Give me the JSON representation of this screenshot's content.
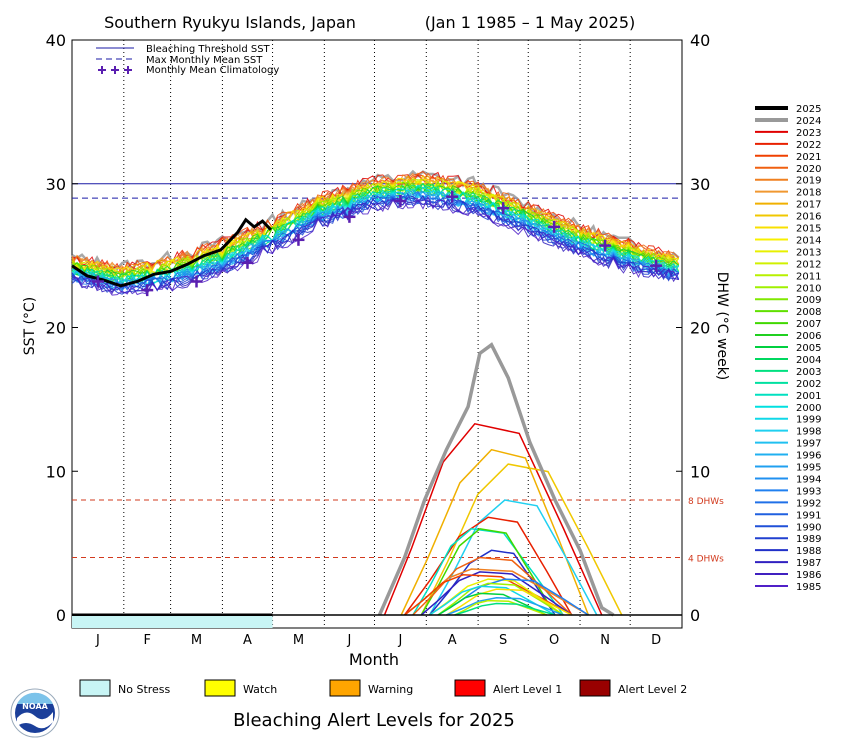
{
  "chart_data": {
    "type": "line",
    "title": "Southern Ryukyu Islands, Japan",
    "date_range": "(Jan 1 1985 – 1 May 2025)",
    "xlabel": "Month",
    "ylabel_left": "SST (°C)",
    "ylabel_right": "DHW (°C week)",
    "x_ticks": [
      "J",
      "F",
      "M",
      "A",
      "M",
      "J",
      "J",
      "A",
      "S",
      "O",
      "N",
      "D"
    ],
    "y_ticks_left": [
      "0",
      "10",
      "20",
      "30",
      "40"
    ],
    "y_ticks_right": [
      "0",
      "10",
      "20",
      "30",
      "40"
    ],
    "sst_ylim": [
      0,
      40
    ],
    "dhw_ylim": [
      0,
      40
    ],
    "grid": "vertical dotted month lines",
    "legend_top": [
      {
        "label": "Bleaching Threshold SST",
        "style": "solid",
        "color": "#1a1aa6"
      },
      {
        "label": "Max Monthly Mean SST",
        "style": "dashed",
        "color": "#1a1aa6"
      },
      {
        "label": "Monthly Mean Climatology",
        "style": "cross",
        "color": "#5a1fb0"
      }
    ],
    "bleaching_threshold": 30.0,
    "max_monthly_mean": 29.0,
    "dhw_reference_lines": [
      {
        "value": 8,
        "label": "8 DHWs"
      },
      {
        "value": 4,
        "label": "4 DHWs"
      }
    ],
    "climatology": {
      "months": [
        1,
        2,
        3,
        4,
        5,
        6,
        7,
        8,
        9,
        10,
        11,
        12
      ],
      "values": [
        23.2,
        22.6,
        23.2,
        24.5,
        26.1,
        27.7,
        28.8,
        29.1,
        28.3,
        27.0,
        25.7,
        24.3
      ]
    },
    "year_series": [
      {
        "name": "2025",
        "color": "#000000"
      },
      {
        "name": "2024",
        "color": "#999999"
      },
      {
        "name": "2023",
        "color": "#e00000"
      },
      {
        "name": "2022",
        "color": "#e82000"
      },
      {
        "name": "2021",
        "color": "#f04000"
      },
      {
        "name": "2020",
        "color": "#f06010"
      },
      {
        "name": "2019",
        "color": "#f08020"
      },
      {
        "name": "2018",
        "color": "#f09830"
      },
      {
        "name": "2017",
        "color": "#f0b000"
      },
      {
        "name": "2016",
        "color": "#f0c800"
      },
      {
        "name": "2015",
        "color": "#f8e000"
      },
      {
        "name": "2014",
        "color": "#f8f000"
      },
      {
        "name": "2013",
        "color": "#e8f000"
      },
      {
        "name": "2012",
        "color": "#d0f000"
      },
      {
        "name": "2011",
        "color": "#b8f000"
      },
      {
        "name": "2010",
        "color": "#a0f000"
      },
      {
        "name": "2009",
        "color": "#80e800"
      },
      {
        "name": "2008",
        "color": "#60e000"
      },
      {
        "name": "2007",
        "color": "#40d800"
      },
      {
        "name": "2006",
        "color": "#20d020"
      },
      {
        "name": "2005",
        "color": "#00d040"
      },
      {
        "name": "2004",
        "color": "#00d860"
      },
      {
        "name": "2003",
        "color": "#00e080"
      },
      {
        "name": "2002",
        "color": "#00e0a0"
      },
      {
        "name": "2001",
        "color": "#00e0c0"
      },
      {
        "name": "2000",
        "color": "#00e0e0"
      },
      {
        "name": "1999",
        "color": "#10d8e8"
      },
      {
        "name": "1998",
        "color": "#20d0f0"
      },
      {
        "name": "1997",
        "color": "#20c0f0"
      },
      {
        "name": "1996",
        "color": "#20b0f0"
      },
      {
        "name": "1995",
        "color": "#20a0f0"
      },
      {
        "name": "1994",
        "color": "#2090f0"
      },
      {
        "name": "1993",
        "color": "#2080f0"
      },
      {
        "name": "1992",
        "color": "#2070e8"
      },
      {
        "name": "1991",
        "color": "#2060e0"
      },
      {
        "name": "1990",
        "color": "#2050d8"
      },
      {
        "name": "1989",
        "color": "#2040d0"
      },
      {
        "name": "1988",
        "color": "#2030c8"
      },
      {
        "name": "1987",
        "color": "#3020c0"
      },
      {
        "name": "1986",
        "color": "#4020c0"
      },
      {
        "name": "1985",
        "color": "#5020c8"
      }
    ],
    "sst_2025": {
      "days": [
        1,
        10,
        20,
        30,
        40,
        50,
        60,
        70,
        80,
        90,
        95,
        100,
        105,
        110,
        115,
        120
      ],
      "values": [
        24.3,
        23.6,
        23.3,
        22.9,
        23.2,
        23.7,
        23.9,
        24.4,
        25.0,
        25.4,
        26.0,
        26.6,
        27.5,
        27.0,
        27.4,
        26.8
      ]
    },
    "sst_envelope": {
      "days": [
        1,
        30,
        60,
        90,
        120,
        150,
        180,
        210,
        240,
        270,
        300,
        330,
        365
      ],
      "high": [
        25.2,
        24.6,
        25.3,
        26.4,
        27.8,
        29.5,
        30.6,
        31.0,
        30.6,
        29.1,
        27.6,
        26.4,
        25.1
      ],
      "low": [
        22.9,
        22.1,
        22.4,
        23.3,
        25.0,
        26.8,
        28.0,
        28.3,
        27.6,
        26.4,
        25.0,
        23.7,
        23.1
      ]
    },
    "dhw_2024": {
      "days": [
        185,
        200,
        212,
        225,
        238,
        245,
        252,
        262,
        275,
        290,
        305,
        318,
        325
      ],
      "values": [
        0,
        4.0,
        8.0,
        11.5,
        14.5,
        18.2,
        18.8,
        16.5,
        12.0,
        8.0,
        4.5,
        0.5,
        0
      ]
    },
    "dhw_other_peaks": [
      {
        "year": "2023",
        "peak": 13.3,
        "start": 188,
        "peak_day": 242,
        "end": 318
      },
      {
        "year": "2017",
        "peak": 11.5,
        "start": 198,
        "peak_day": 252,
        "end": 310
      },
      {
        "year": "2016",
        "peak": 10.5,
        "start": 210,
        "peak_day": 262,
        "end": 330
      },
      {
        "year": "1998",
        "peak": 8.0,
        "start": 215,
        "peak_day": 260,
        "end": 315
      },
      {
        "year": "2022",
        "peak": 6.8,
        "start": 200,
        "peak_day": 250,
        "end": 300
      },
      {
        "year": "2001",
        "peak": 6.0,
        "start": 205,
        "peak_day": 240,
        "end": 295
      },
      {
        "year": "2007",
        "peak": 6.0,
        "start": 210,
        "peak_day": 245,
        "end": 290
      },
      {
        "year": "1988",
        "peak": 4.5,
        "start": 215,
        "peak_day": 252,
        "end": 290
      },
      {
        "year": "2020",
        "peak": 4.0,
        "start": 205,
        "peak_day": 245,
        "end": 300
      },
      {
        "year": "2019",
        "peak": 3.2,
        "start": 200,
        "peak_day": 240,
        "end": 310
      },
      {
        "year": "1987",
        "peak": 3.0,
        "start": 210,
        "peak_day": 245,
        "end": 300
      },
      {
        "year": "2021",
        "peak": 2.8,
        "start": 200,
        "peak_day": 235,
        "end": 300
      },
      {
        "year": "2013",
        "peak": 2.5,
        "start": 215,
        "peak_day": 250,
        "end": 295
      },
      {
        "year": "1993",
        "peak": 2.5,
        "start": 220,
        "peak_day": 260,
        "end": 310
      },
      {
        "year": "2010",
        "peak": 2.2,
        "start": 220,
        "peak_day": 250,
        "end": 295
      },
      {
        "year": "1999",
        "peak": 2.0,
        "start": 215,
        "peak_day": 245,
        "end": 290
      },
      {
        "year": "2015",
        "peak": 1.8,
        "start": 225,
        "peak_day": 255,
        "end": 300
      },
      {
        "year": "2005",
        "peak": 1.5,
        "start": 220,
        "peak_day": 245,
        "end": 285
      },
      {
        "year": "1995",
        "peak": 1.2,
        "start": 225,
        "peak_day": 255,
        "end": 295
      },
      {
        "year": "2011",
        "peak": 1.0,
        "start": 230,
        "peak_day": 250,
        "end": 285
      },
      {
        "year": "2003",
        "peak": 0.8,
        "start": 230,
        "peak_day": 255,
        "end": 290
      }
    ],
    "alert_bar_2025": {
      "from_day": 1,
      "to_day": 121,
      "level": "No Stress"
    }
  },
  "alert_legend": [
    {
      "label": "No Stress",
      "color": "#c8f5f5"
    },
    {
      "label": "Watch",
      "color": "#ffff00"
    },
    {
      "label": "Warning",
      "color": "#ffa500"
    },
    {
      "label": "Alert Level 1",
      "color": "#ff0000"
    },
    {
      "label": "Alert Level 2",
      "color": "#990000"
    }
  ],
  "bottom_title": "Bleaching Alert Levels for 2025",
  "logo": {
    "text": "NOAA",
    "icon": "noaa-logo"
  }
}
